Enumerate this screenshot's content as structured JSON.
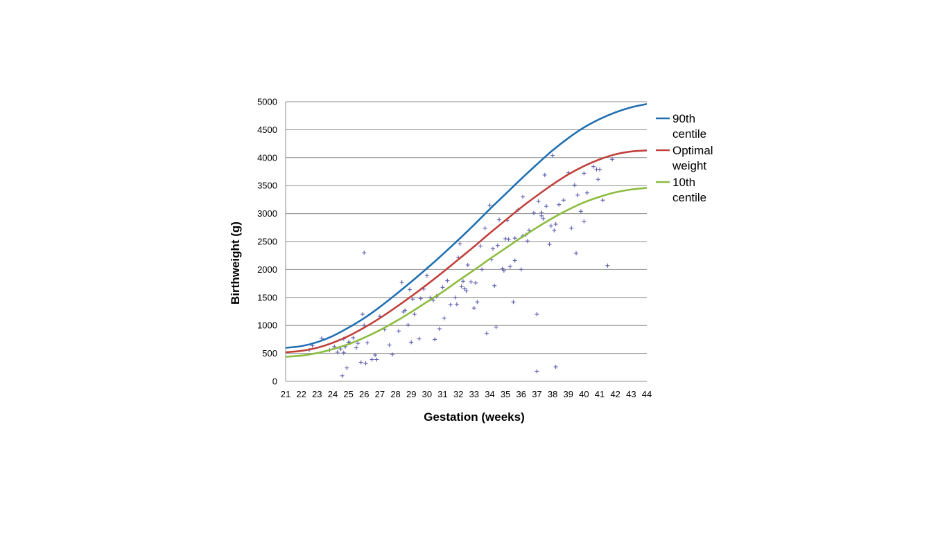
{
  "chart_data": {
    "type": "scatter",
    "title": "",
    "xlabel": "Gestation (weeks)",
    "ylabel": "Birthweight (g)",
    "xlim": [
      21,
      44
    ],
    "ylim": [
      0,
      5000
    ],
    "x_ticks": [
      21,
      22,
      23,
      24,
      25,
      26,
      27,
      28,
      29,
      30,
      31,
      32,
      33,
      34,
      35,
      36,
      37,
      38,
      39,
      40,
      41,
      42,
      43,
      44
    ],
    "y_ticks": [
      0,
      500,
      1000,
      1500,
      2000,
      2500,
      3000,
      3500,
      4000,
      4500,
      5000
    ],
    "grid": "horizontal",
    "legend_position": "right",
    "legend": [
      {
        "lines": [
          "90th",
          "centile"
        ],
        "color": "#1f6fb2"
      },
      {
        "lines": [
          "Optimal",
          "weight"
        ],
        "color": "#c0413b"
      },
      {
        "lines": [
          "10th",
          "centile"
        ],
        "color": "#8bbc3f"
      }
    ],
    "curves": [
      {
        "name": "90th centile",
        "color": "#1f6fb2",
        "x": [
          21,
          22,
          23,
          24,
          25,
          26,
          27,
          28,
          29,
          30,
          31,
          32,
          33,
          34,
          35,
          36,
          37,
          38,
          39,
          40,
          41,
          42,
          43,
          44
        ],
        "y": [
          600,
          630,
          700,
          810,
          960,
          1130,
          1330,
          1550,
          1780,
          2020,
          2270,
          2530,
          2800,
          3080,
          3350,
          3620,
          3880,
          4130,
          4350,
          4540,
          4690,
          4810,
          4900,
          4960
        ]
      },
      {
        "name": "Optimal weight",
        "color": "#c0413b",
        "x": [
          21,
          22,
          23,
          24,
          25,
          26,
          27,
          28,
          29,
          30,
          31,
          32,
          33,
          34,
          35,
          36,
          37,
          38,
          39,
          40,
          41,
          42,
          43,
          44
        ],
        "y": [
          520,
          545,
          600,
          690,
          810,
          960,
          1130,
          1320,
          1520,
          1730,
          1950,
          2180,
          2410,
          2650,
          2880,
          3110,
          3320,
          3520,
          3700,
          3850,
          3970,
          4060,
          4110,
          4130
        ]
      },
      {
        "name": "10th centile",
        "color": "#8bbc3f",
        "x": [
          21,
          22,
          23,
          24,
          25,
          26,
          27,
          28,
          29,
          30,
          31,
          32,
          33,
          34,
          35,
          36,
          37,
          38,
          39,
          40,
          41,
          42,
          43,
          44
        ],
        "y": [
          440,
          460,
          505,
          575,
          665,
          780,
          915,
          1070,
          1240,
          1420,
          1600,
          1800,
          1990,
          2190,
          2380,
          2570,
          2750,
          2920,
          3070,
          3200,
          3300,
          3380,
          3430,
          3460
        ]
      }
    ],
    "points": {
      "marker": "+",
      "color": "#5b5bb0",
      "x": [
        22.7,
        23.3,
        23.8,
        24.1,
        24.3,
        24.5,
        24.6,
        24.7,
        24.8,
        24.9,
        25.0,
        25.3,
        25.5,
        25.6,
        25.8,
        25.9,
        26.0,
        26.1,
        26.2,
        26.7,
        26.8,
        27.0,
        27.3,
        27.6,
        28.2,
        28.4,
        28.5,
        28.6,
        28.8,
        28.9,
        29.1,
        29.2,
        29.5,
        29.6,
        29.8,
        30.0,
        30.2,
        30.5,
        30.6,
        30.8,
        31.0,
        31.1,
        31.3,
        31.5,
        31.8,
        32.0,
        32.1,
        32.2,
        32.3,
        32.4,
        32.5,
        32.6,
        32.8,
        33.0,
        33.2,
        33.4,
        33.5,
        33.7,
        33.8,
        34.0,
        34.1,
        34.3,
        34.5,
        34.6,
        34.8,
        34.9,
        35.0,
        35.1,
        35.3,
        35.5,
        35.6,
        35.8,
        36.0,
        36.1,
        36.3,
        36.5,
        36.8,
        37.0,
        37.1,
        37.3,
        37.5,
        37.6,
        37.8,
        38.0,
        38.2,
        38.4,
        38.7,
        39.0,
        39.2,
        39.4,
        39.6,
        39.8,
        40.0,
        40.2,
        40.6,
        40.8,
        41.0,
        41.2,
        41.5,
        41.8,
        37.9,
        26.0,
        38.2,
        37.0,
        40.0,
        37.3,
        35.6,
        34.4,
        36.1,
        38.1,
        22.5,
        24.7,
        25.1,
        26.5,
        27.8,
        29.0,
        30.4,
        31.9,
        33.1,
        34.2,
        35.2,
        36.4,
        37.4,
        39.5,
        40.9
      ],
      "y": [
        640,
        770,
        560,
        620,
        520,
        580,
        100,
        760,
        620,
        240,
        700,
        780,
        600,
        680,
        340,
        1200,
        1000,
        320,
        690,
        470,
        390,
        1160,
        930,
        650,
        900,
        1770,
        1240,
        1270,
        1010,
        1640,
        1470,
        1200,
        760,
        1480,
        1650,
        1890,
        1500,
        750,
        1520,
        940,
        1680,
        1130,
        1800,
        1370,
        1500,
        2210,
        2460,
        1700,
        1790,
        1660,
        1620,
        2080,
        1780,
        1310,
        1420,
        2420,
        2000,
        2740,
        860,
        3150,
        2180,
        1710,
        2430,
        2890,
        2020,
        1980,
        2550,
        2880,
        2050,
        1420,
        2560,
        3070,
        2000,
        3300,
        2620,
        2700,
        3010,
        1200,
        3220,
        3020,
        3690,
        3130,
        2450,
        4040,
        2810,
        3160,
        3240,
        3730,
        2740,
        3510,
        3330,
        3040,
        3720,
        3370,
        3840,
        3790,
        3790,
        3240,
        2070,
        3970,
        2780,
        2300,
        260,
        180,
        2860,
        2960,
        2160,
        970,
        2600,
        2700,
        560,
        510,
        690,
        390,
        480,
        700,
        1450,
        1380,
        1760,
        2370,
        2540,
        2510,
        2910,
        2290,
        3610
      ],
      "note_count": 125
    }
  }
}
